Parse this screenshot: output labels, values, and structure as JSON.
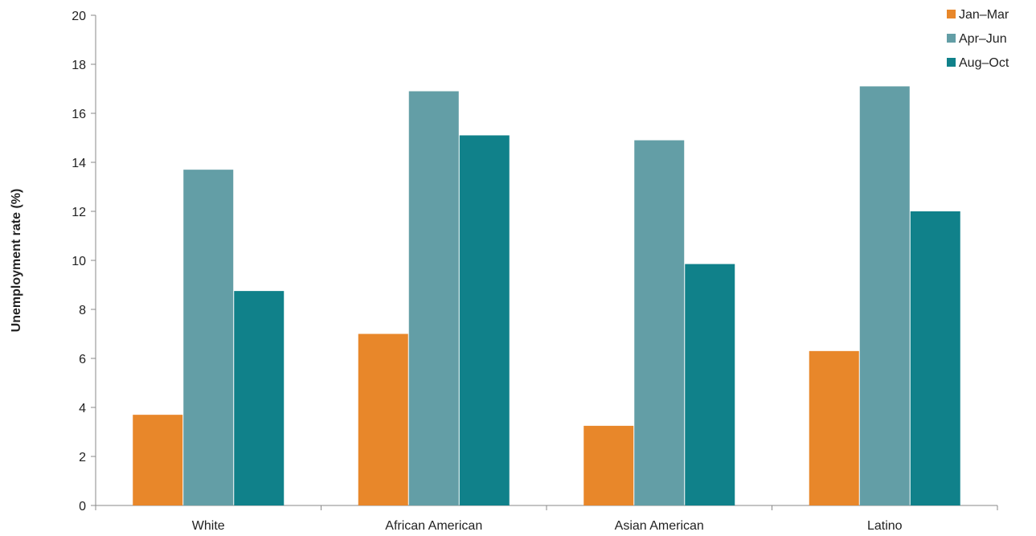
{
  "chart_data": {
    "type": "bar",
    "title": "",
    "xlabel": "",
    "ylabel": "Unemployment rate (%)",
    "ylim": [
      0,
      20
    ],
    "yticks": [
      0,
      2,
      4,
      6,
      8,
      10,
      12,
      14,
      16,
      18,
      20
    ],
    "grid": false,
    "legend_position": "top-right",
    "categories": [
      "White",
      "African American",
      "Asian American",
      "Latino"
    ],
    "series": [
      {
        "name": "Jan–Mar",
        "color": "#E8872A",
        "values": [
          3.7,
          7.0,
          3.25,
          6.3
        ]
      },
      {
        "name": "Apr–Jun",
        "color": "#639EA6",
        "values": [
          13.7,
          16.9,
          14.9,
          17.1
        ]
      },
      {
        "name": "Aug–Oct",
        "color": "#10818A",
        "values": [
          8.75,
          15.1,
          9.85,
          12.0
        ]
      }
    ]
  }
}
